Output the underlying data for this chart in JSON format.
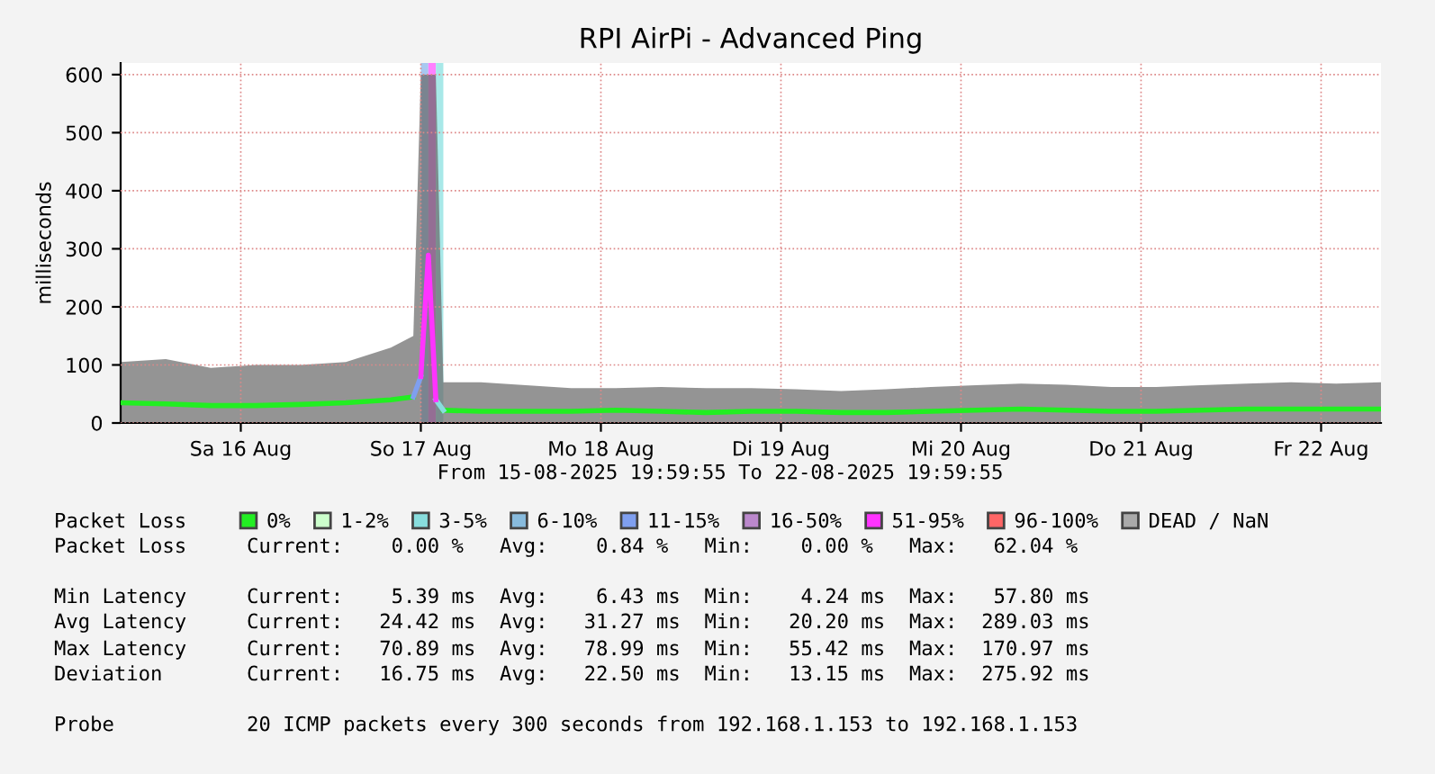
{
  "chart_data": {
    "type": "line",
    "title": "RPI AirPi - Advanced Ping",
    "ylabel": "milliseconds",
    "x": [
      "2025-08-15T20:00",
      "2025-08-16T02:00",
      "2025-08-16T08:00",
      "2025-08-16T14:00",
      "2025-08-16T20:00",
      "2025-08-17T02:00",
      "2025-08-17T08:00",
      "2025-08-17T11:00",
      "2025-08-17T12:00",
      "2025-08-17T13:00",
      "2025-08-17T14:00",
      "2025-08-17T15:00",
      "2025-08-17T20:00",
      "2025-08-18T02:00",
      "2025-08-18T08:00",
      "2025-08-18T14:00",
      "2025-08-18T20:00",
      "2025-08-19T02:00",
      "2025-08-19T08:00",
      "2025-08-19T14:00",
      "2025-08-19T20:00",
      "2025-08-20T02:00",
      "2025-08-20T08:00",
      "2025-08-20T14:00",
      "2025-08-20T20:00",
      "2025-08-21T02:00",
      "2025-08-21T08:00",
      "2025-08-21T14:00",
      "2025-08-21T20:00",
      "2025-08-22T02:00",
      "2025-08-22T08:00",
      "2025-08-22T14:00",
      "2025-08-22T19:59"
    ],
    "series": [
      {
        "type": "area",
        "color": "#666666",
        "values": [
          105,
          110,
          95,
          100,
          100,
          105,
          130,
          150,
          600,
          600,
          600,
          70,
          70,
          65,
          60,
          60,
          62,
          60,
          60,
          58,
          55,
          58,
          62,
          65,
          68,
          66,
          62,
          62,
          65,
          68,
          70,
          68,
          70
        ]
      },
      {
        "name": "0%",
        "color": "#22ee22",
        "values": [
          35,
          33,
          30,
          30,
          32,
          35,
          40,
          45,
          null,
          null,
          null,
          22,
          20,
          20,
          20,
          22,
          20,
          18,
          20,
          20,
          18,
          18,
          20,
          22,
          24,
          22,
          20,
          20,
          22,
          24,
          24,
          24,
          24
        ]
      },
      {
        "name": "1-2%",
        "color": "#ccffcc",
        "values": [
          null,
          null,
          null,
          null,
          null,
          null,
          null,
          null,
          null,
          null,
          null,
          null,
          null,
          null,
          null,
          null,
          null,
          null,
          null,
          null,
          null,
          null,
          null,
          null,
          null,
          null,
          null,
          null,
          null,
          null,
          null,
          null,
          null
        ]
      },
      {
        "name": "3-5%",
        "color": "#88dddd",
        "values": [
          null,
          null,
          null,
          null,
          null,
          null,
          null,
          null,
          null,
          null,
          40,
          22,
          null,
          null,
          null,
          null,
          null,
          null,
          null,
          null,
          null,
          null,
          null,
          null,
          null,
          null,
          null,
          null,
          null,
          null,
          null,
          null,
          null
        ]
      },
      {
        "name": "6-10%",
        "color": "#88bbdd",
        "values": [
          null,
          null,
          null,
          null,
          null,
          null,
          null,
          null,
          null,
          null,
          null,
          null,
          null,
          null,
          null,
          null,
          null,
          null,
          null,
          null,
          null,
          null,
          null,
          null,
          null,
          null,
          null,
          null,
          null,
          null,
          null,
          null,
          null
        ]
      },
      {
        "name": "11-15%",
        "color": "#7f9fef",
        "values": [
          null,
          null,
          null,
          null,
          null,
          null,
          null,
          45,
          80,
          null,
          null,
          null,
          null,
          null,
          null,
          null,
          null,
          null,
          null,
          null,
          null,
          null,
          null,
          null,
          null,
          null,
          null,
          null,
          null,
          null,
          null,
          null,
          null
        ]
      },
      {
        "name": "16-50%",
        "color": "#bb88cc",
        "values": [
          null,
          null,
          null,
          null,
          null,
          null,
          null,
          null,
          null,
          null,
          null,
          null,
          null,
          null,
          null,
          null,
          null,
          null,
          null,
          null,
          null,
          null,
          null,
          null,
          null,
          null,
          null,
          null,
          null,
          null,
          null,
          null,
          null
        ]
      },
      {
        "name": "51-95%",
        "color": "#ff33ff",
        "values": [
          null,
          null,
          null,
          null,
          null,
          null,
          null,
          null,
          80,
          289,
          40,
          null,
          null,
          null,
          null,
          null,
          null,
          null,
          null,
          null,
          null,
          null,
          null,
          null,
          null,
          null,
          null,
          null,
          null,
          null,
          null,
          null,
          null
        ]
      },
      {
        "name": "96-100%",
        "color": "#ff6666",
        "values": [
          null,
          null,
          null,
          null,
          null,
          null,
          null,
          null,
          null,
          null,
          null,
          null,
          null,
          null,
          null,
          null,
          null,
          null,
          null,
          null,
          null,
          null,
          null,
          null,
          null,
          null,
          null,
          null,
          null,
          null,
          null,
          null,
          null
        ]
      },
      {
        "name": "DEAD / NaN",
        "color": "#aaaaaa",
        "values": [
          null,
          null,
          null,
          null,
          null,
          null,
          null,
          null,
          null,
          null,
          null,
          null,
          null,
          null,
          null,
          null,
          null,
          null,
          null,
          null,
          null,
          null,
          null,
          null,
          null,
          null,
          null,
          null,
          null,
          null,
          null,
          null,
          null
        ]
      }
    ],
    "bands": [
      {
        "axis": "x",
        "from": "2025-08-17T12:00",
        "to": "2025-08-17T13:00",
        "color": "#a8c8f0"
      },
      {
        "axis": "x",
        "from": "2025-08-17T13:00",
        "to": "2025-08-17T14:00",
        "color": "#ff80ff"
      },
      {
        "axis": "x",
        "from": "2025-08-17T14:00",
        "to": "2025-08-17T15:00",
        "color": "#a8e8e8"
      }
    ],
    "xlim": [
      "2025-08-15T19:59",
      "2025-08-22T19:59"
    ],
    "xticks": [
      {
        "value": "2025-08-16T12:00",
        "label": "Sa 16 Aug"
      },
      {
        "value": "2025-08-17T12:00",
        "label": "So 17 Aug"
      },
      {
        "value": "2025-08-18T12:00",
        "label": "Mo 18 Aug"
      },
      {
        "value": "2025-08-19T12:00",
        "label": "Di 19 Aug"
      },
      {
        "value": "2025-08-20T12:00",
        "label": "Mi 20 Aug"
      },
      {
        "value": "2025-08-21T12:00",
        "label": "Do 21 Aug"
      },
      {
        "value": "2025-08-22T12:00",
        "label": "Fr 22 Aug"
      }
    ],
    "ylim": [
      0,
      620
    ],
    "yticks": [
      0,
      100,
      200,
      300,
      400,
      500,
      600
    ],
    "grid": true,
    "legend": "bottom",
    "legend_title": "Packet Loss",
    "annotations": [
      "From 15-08-2025 19:59:55 To 22-08-2025 19:59:55",
      "Packet Loss     Current:    0.00 %   Avg:    0.84 %   Min:    0.00 %   Max:   62.04 %",
      "Min Latency     Current:    5.39 ms  Avg:    6.43 ms  Min:    4.24 ms  Max:   57.80 ms",
      "Avg Latency     Current:   24.42 ms  Avg:   31.27 ms  Min:   20.20 ms  Max:  289.03 ms",
      "Max Latency     Current:   70.89 ms  Avg:   78.99 ms  Min:   55.42 ms  Max:  170.97 ms",
      "Deviation       Current:   16.75 ms  Avg:   22.50 ms  Min:   13.15 ms  Max:  275.92 ms",
      "Probe           20 ICMP packets every 300 seconds from 192.168.1.153 to 192.168.1.153"
    ]
  }
}
